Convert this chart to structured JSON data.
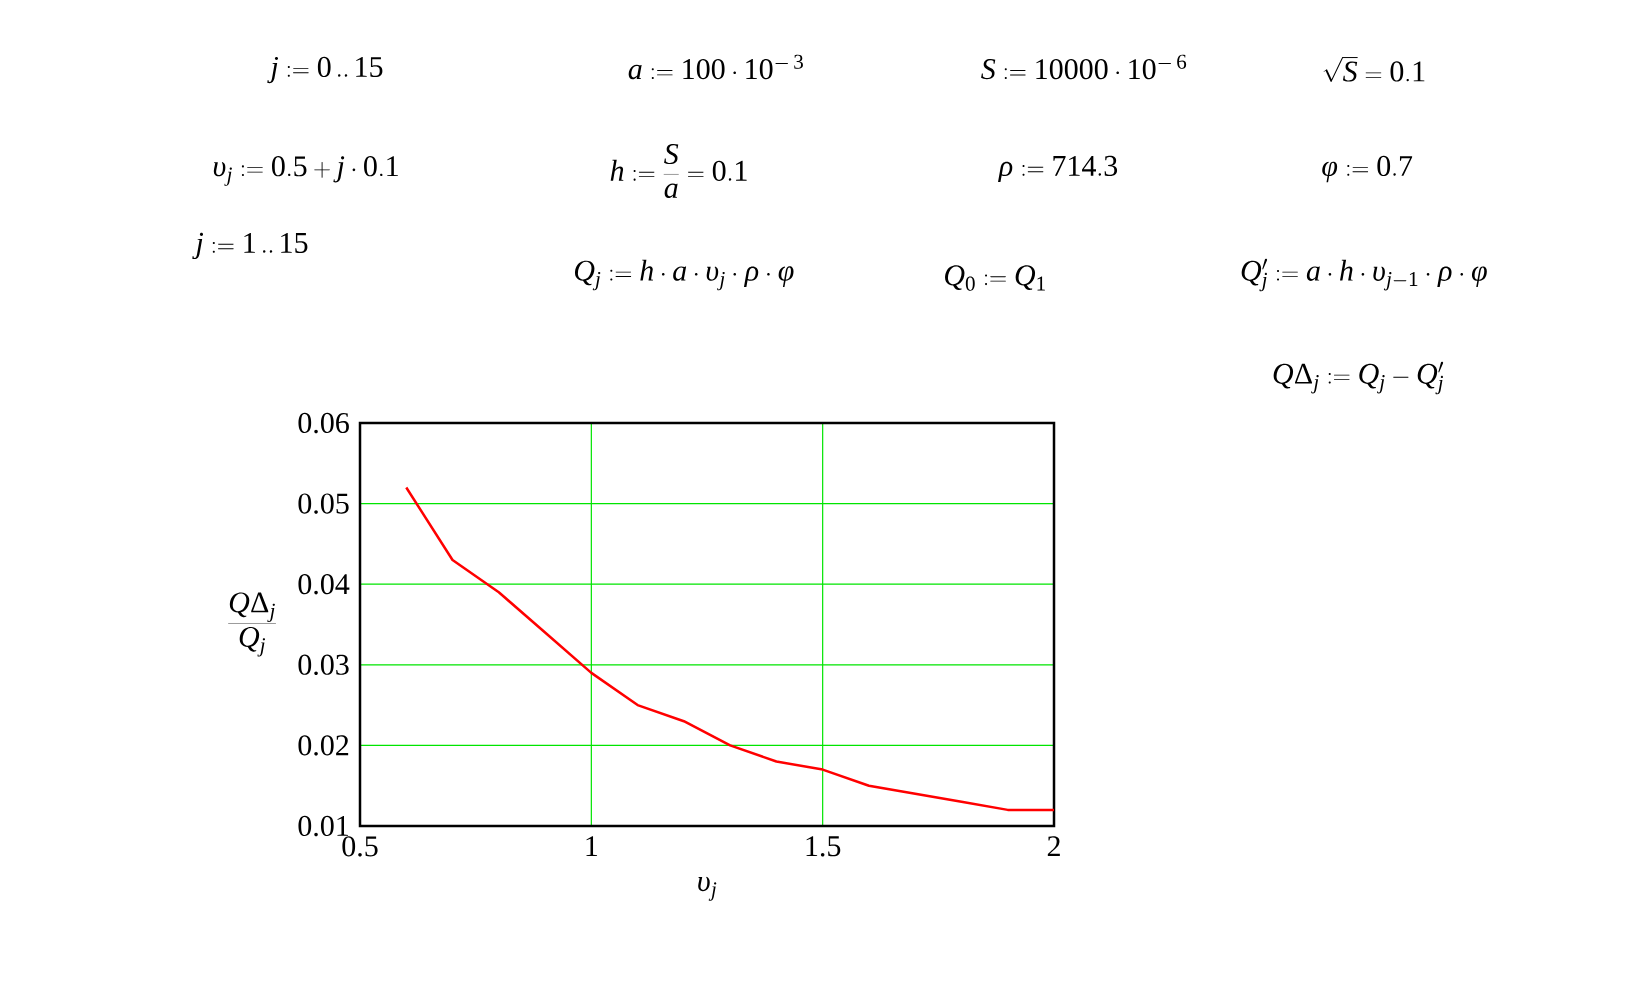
{
  "chart_data": {
    "type": "line",
    "xlabel": "\\upsilon_{j}",
    "ylabel": "\\frac{Q\\Delta_{j}}{Q_{j}}",
    "x": [
      0.6,
      0.7,
      0.8,
      0.9,
      1.0,
      1.1,
      1.2,
      1.3,
      1.4,
      1.5,
      1.6,
      1.7,
      1.8,
      1.9,
      2.0
    ],
    "series": [
      {
        "color": "#ff0000",
        "values": [
          0.052,
          0.043,
          0.039,
          0.034,
          0.029,
          0.025,
          0.023,
          0.02,
          0.018,
          0.017,
          0.015,
          0.014,
          0.013,
          0.012,
          0.012
        ]
      }
    ],
    "xlim": [
      0.5,
      2
    ],
    "ylim": [
      0.01,
      0.06
    ],
    "xticks": [
      0.5,
      1,
      1.5,
      2
    ],
    "yticks": [
      0.01,
      0.02,
      0.03,
      0.04,
      0.05,
      0.06
    ],
    "grid": true,
    "marker": "none",
    "line_style": "solid",
    "annotations": [
      "j := 0\\,..\\,15",
      "a := 100\\cdot 10^{-\\,3}",
      "S := 10000\\cdot 10^{-\\,6}",
      "\\sqrt{S} = 0.1",
      "\\upsilon_{j} := 0.5 + j\\cdot 0.1",
      "h := \\frac{S}{a} = 0.1",
      "\\rho := 714.3",
      "\\phi := 0.7",
      "j := 1\\,..\\,15",
      "Q_{j} := h\\cdot a\\cdot \\upsilon_{j}\\cdot \\rho\\cdot \\phi",
      "Q_{0} := Q_{1}",
      "Q'_{j} := a\\cdot h\\cdot \\upsilon_{j-1}\\cdot \\rho\\cdot \\phi",
      "Q\\Delta_{j} := Q_{j} - Q'_{j}"
    ]
  }
}
